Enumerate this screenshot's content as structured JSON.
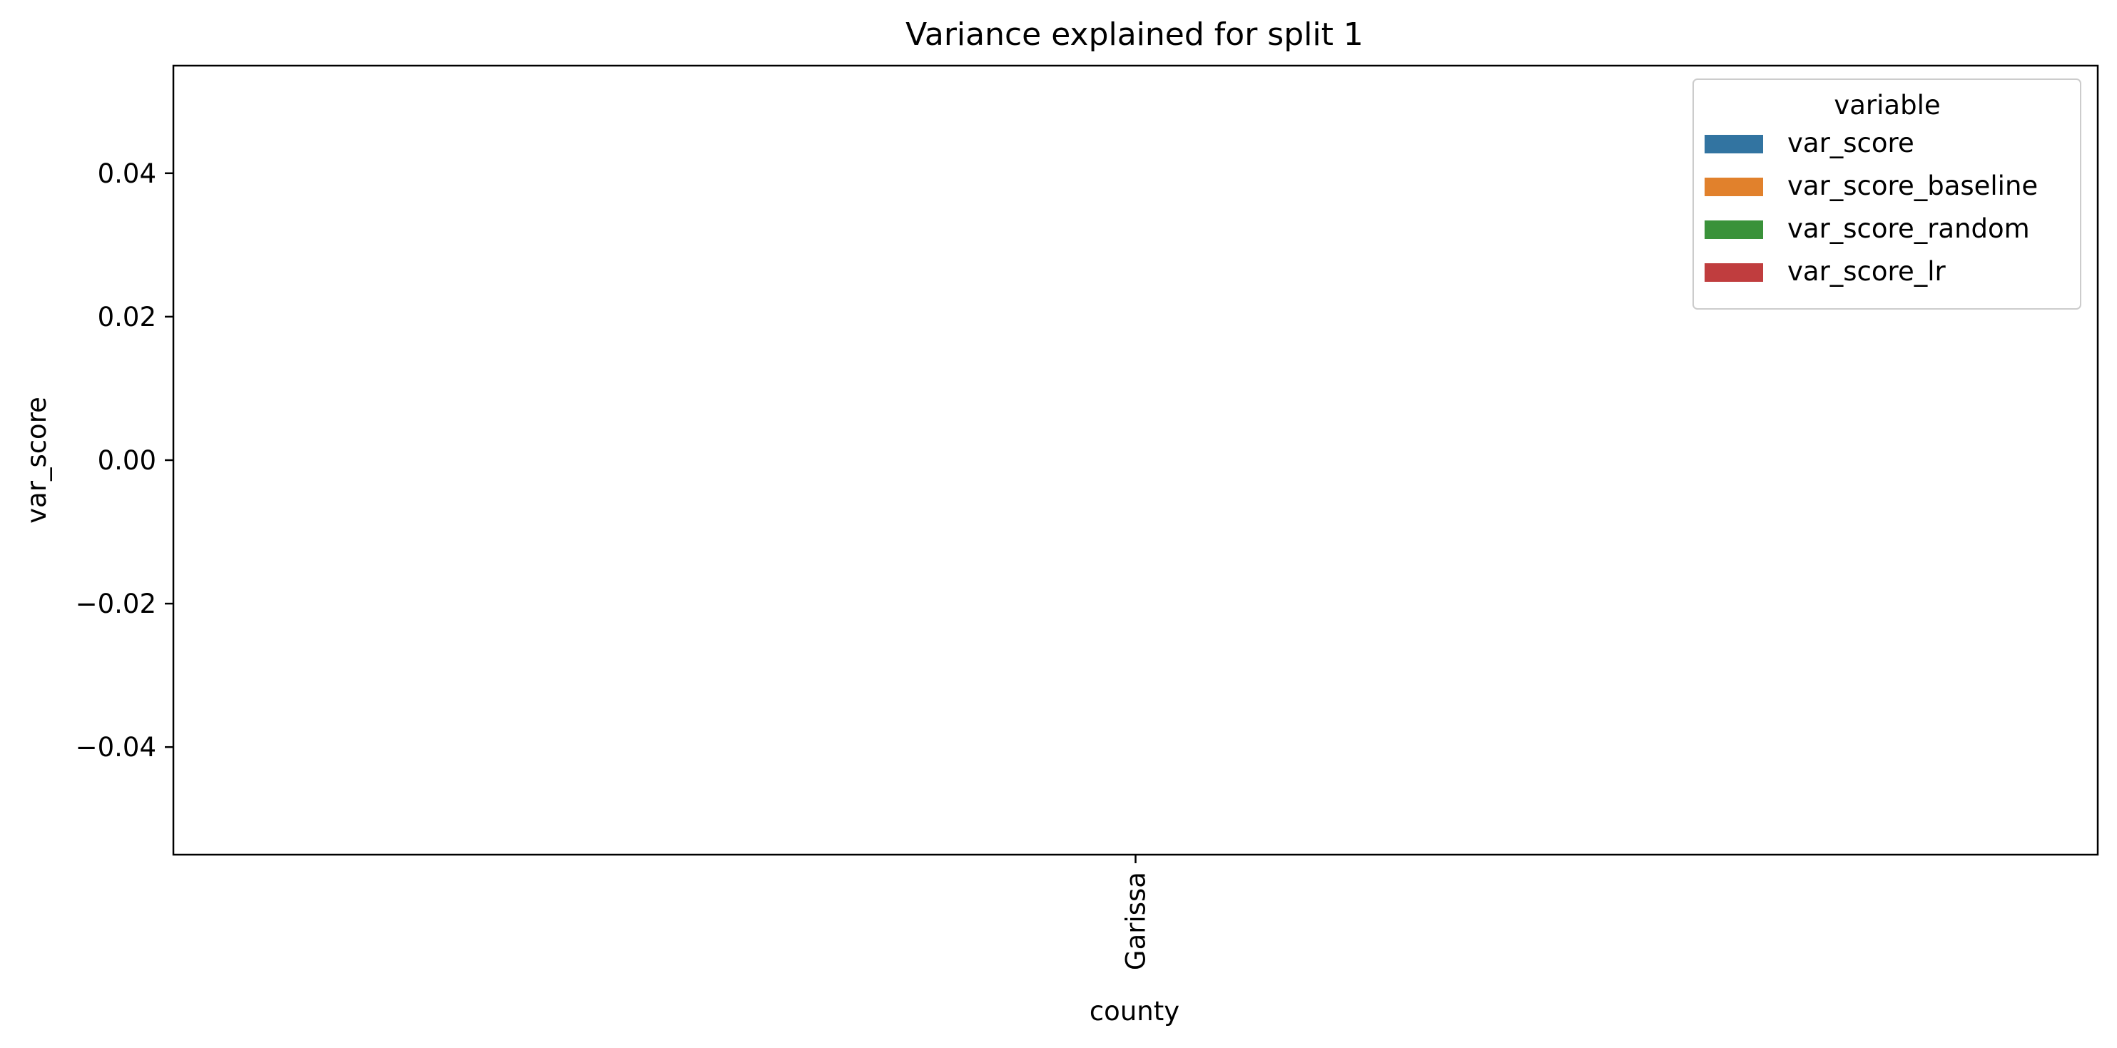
{
  "chart_data": {
    "type": "bar",
    "title": "Variance explained for split 1",
    "xlabel": "county",
    "ylabel": "var_score",
    "categories": [
      "Garissa"
    ],
    "ylim": [
      -0.055,
      0.055
    ],
    "yticks": [
      -0.04,
      -0.02,
      0.0,
      0.02,
      0.04
    ],
    "ytick_labels": [
      "−0.04",
      "−0.02",
      "0.00",
      "0.02",
      "0.04"
    ],
    "grid": false,
    "legend": {
      "title": "variable",
      "placement": "top-right"
    },
    "series": [
      {
        "name": "var_score",
        "color": "#3274a1",
        "values": [
          null
        ]
      },
      {
        "name": "var_score_baseline",
        "color": "#e1812c",
        "values": [
          null
        ]
      },
      {
        "name": "var_score_random",
        "color": "#3a923a",
        "values": [
          null
        ]
      },
      {
        "name": "var_score_lr",
        "color": "#c03d3e",
        "values": [
          null
        ]
      }
    ]
  }
}
